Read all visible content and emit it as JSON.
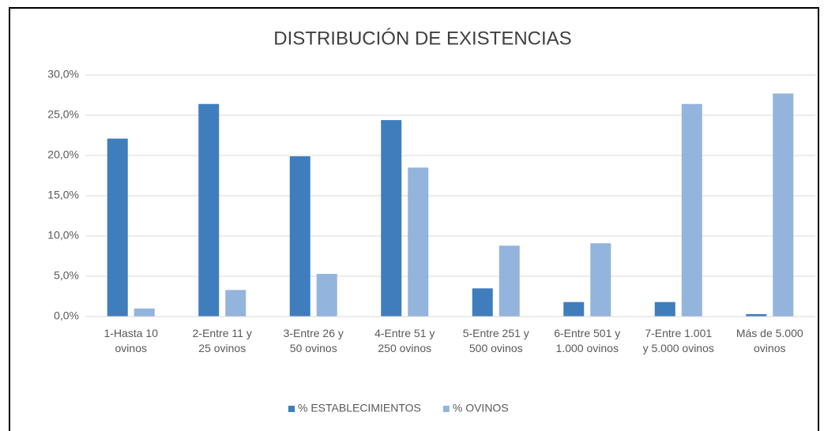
{
  "chart_data": {
    "type": "bar",
    "title": "DISTRIBUCIÓN DE EXISTENCIAS",
    "categories": [
      "1-Hasta 10 ovinos",
      "2-Entre 11 y 25 ovinos",
      "3-Entre 26 y 50 ovinos",
      "4-Entre 51 y 250 ovinos",
      "5-Entre 251 y 500 ovinos",
      "6-Entre 501 y 1.000 ovinos",
      "7-Entre 1.001 y 5.000 ovinos",
      "Más de 5.000 ovinos"
    ],
    "series": [
      {
        "name": "% ESTABLECIMIENTOS",
        "color": "#3f7dbd",
        "values": [
          22.1,
          26.4,
          19.9,
          24.4,
          3.5,
          1.8,
          1.8,
          0.3
        ]
      },
      {
        "name": "% OVINOS",
        "color": "#93b4dc",
        "values": [
          1.0,
          3.3,
          5.3,
          18.5,
          8.8,
          9.1,
          26.4,
          27.7
        ]
      }
    ],
    "ylim": [
      0,
      30
    ],
    "yticks": [
      {
        "value": 0,
        "label": "0,0%"
      },
      {
        "value": 5,
        "label": "5,0%"
      },
      {
        "value": 10,
        "label": "10,0%"
      },
      {
        "value": 15,
        "label": "15,0%"
      },
      {
        "value": 20,
        "label": "20,0%"
      },
      {
        "value": 25,
        "label": "25,0%"
      },
      {
        "value": 30,
        "label": "30,0%"
      }
    ],
    "grid": true,
    "legend": "bottom"
  }
}
